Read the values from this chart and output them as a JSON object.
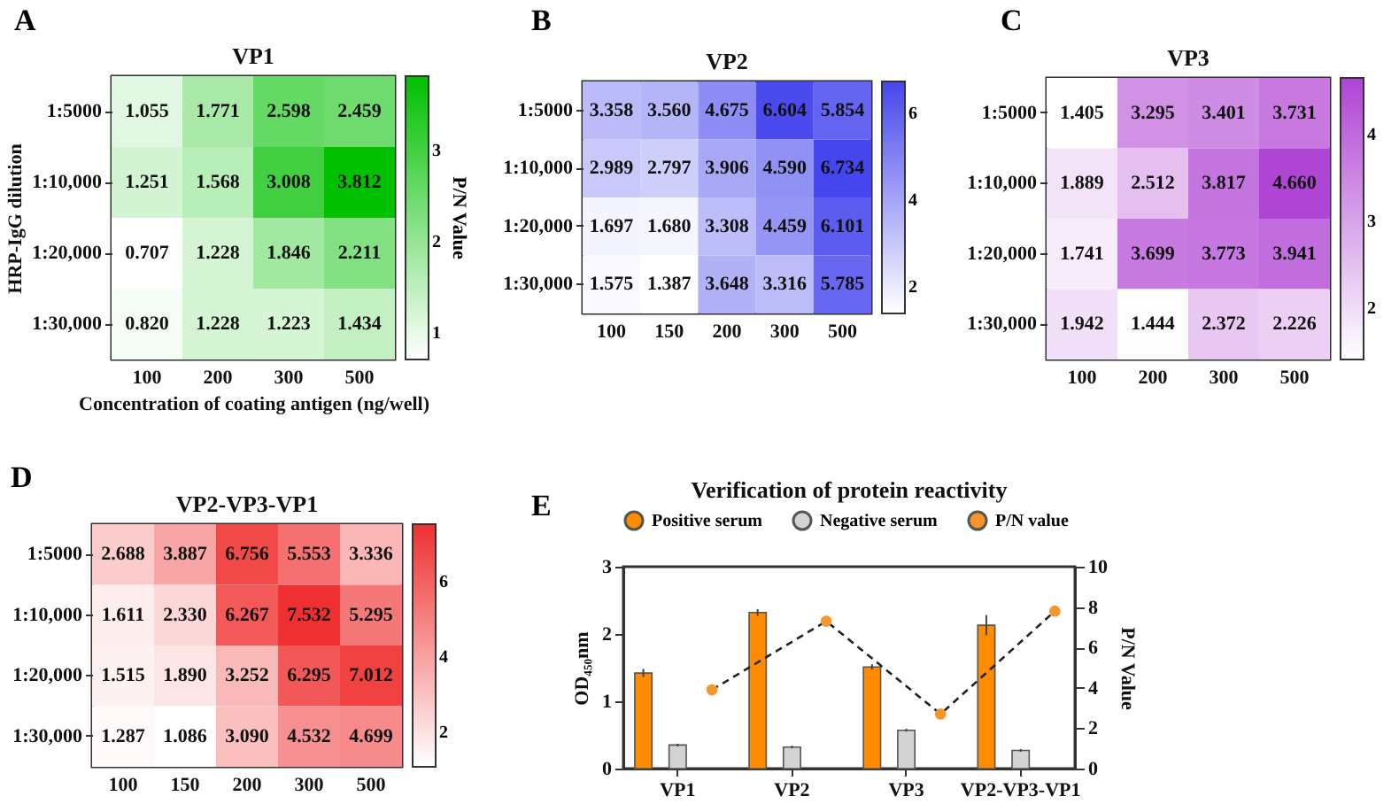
{
  "chart_data": [
    {
      "type": "heatmap",
      "title": "VP1",
      "annotations": [
        "A"
      ],
      "xlabel": "Concentration of coating antigen (ng/well)",
      "ylabel": "HRP-IgG dilution",
      "clabel": "P/N Value",
      "color": "#00c000",
      "grid": false,
      "categories": [
        "100",
        "200",
        "300",
        "500"
      ],
      "y_categories": [
        "1:5000",
        "1:10,000",
        "1:20,000",
        "1:30,000"
      ],
      "cells": [
        [
          1.055,
          1.771,
          2.598,
          2.459
        ],
        [
          1.251,
          1.568,
          3.008,
          3.812
        ],
        [
          0.707,
          1.228,
          1.846,
          2.211
        ],
        [
          0.82,
          1.228,
          1.223,
          1.434
        ]
      ],
      "cell_labels": [
        [
          "1.055",
          "1.771",
          "2.598",
          "2.459"
        ],
        [
          "1.251",
          "1.568",
          "3.008",
          "3.812"
        ],
        [
          "0.707",
          "1.228",
          "1.846",
          "2.211"
        ],
        [
          "0.820",
          "1.228",
          "1.223",
          "1.434"
        ]
      ],
      "clim": [
        0.707,
        3.812
      ],
      "cticks": [
        1,
        2,
        3
      ]
    },
    {
      "type": "heatmap",
      "title": "VP2",
      "annotations": [
        "B"
      ],
      "color": "#4646ee",
      "grid": false,
      "categories": [
        "100",
        "150",
        "200",
        "300",
        "500"
      ],
      "y_categories": [
        "1:5000",
        "1:10,000",
        "1:20,000",
        "1:30,000"
      ],
      "cells": [
        [
          3.358,
          3.56,
          4.675,
          6.604,
          5.854
        ],
        [
          2.989,
          2.797,
          3.906,
          4.59,
          6.734
        ],
        [
          1.697,
          1.68,
          3.308,
          4.459,
          6.101
        ],
        [
          1.575,
          1.387,
          3.648,
          3.316,
          5.785
        ]
      ],
      "cell_labels": [
        [
          "3.358",
          "3.560",
          "4.675",
          "6.604",
          "5.854"
        ],
        [
          "2.989",
          "2.797",
          "3.906",
          "4.590",
          "6.734"
        ],
        [
          "1.697",
          "1.680",
          "3.308",
          "4.459",
          "6.101"
        ],
        [
          "1.575",
          "1.387",
          "3.648",
          "3.316",
          "5.785"
        ]
      ],
      "clim": [
        1.387,
        6.734
      ],
      "cticks": [
        2,
        4,
        6
      ]
    },
    {
      "type": "heatmap",
      "title": "VP3",
      "annotations": [
        "C"
      ],
      "color": "#b044d4",
      "grid": false,
      "categories": [
        "100",
        "200",
        "300",
        "500"
      ],
      "y_categories": [
        "1:5000",
        "1:10,000",
        "1:20,000",
        "1:30,000"
      ],
      "cells": [
        [
          1.405,
          3.295,
          3.401,
          3.731
        ],
        [
          1.889,
          2.512,
          3.817,
          4.66
        ],
        [
          1.741,
          3.699,
          3.773,
          3.941
        ],
        [
          1.942,
          1.444,
          2.372,
          2.226
        ]
      ],
      "cell_labels": [
        [
          "1.405",
          "3.295",
          "3.401",
          "3.731"
        ],
        [
          "1.889",
          "2.512",
          "3.817",
          "4.660"
        ],
        [
          "1.741",
          "3.699",
          "3.773",
          "3.941"
        ],
        [
          "1.942",
          "1.444",
          "2.372",
          "2.226"
        ]
      ],
      "clim": [
        1.405,
        4.66
      ],
      "cticks": [
        2,
        3,
        4
      ]
    },
    {
      "type": "heatmap",
      "title": "VP2-VP3-VP1",
      "annotations": [
        "D"
      ],
      "color": "#f03030",
      "grid": false,
      "categories": [
        "100",
        "150",
        "200",
        "300",
        "500"
      ],
      "y_categories": [
        "1:5000",
        "1:10,000",
        "1:20,000",
        "1:30,000"
      ],
      "cells": [
        [
          2.688,
          3.887,
          6.756,
          5.553,
          3.336
        ],
        [
          1.611,
          2.33,
          6.267,
          7.532,
          5.295
        ],
        [
          1.515,
          1.89,
          3.252,
          6.295,
          7.012
        ],
        [
          1.287,
          1.086,
          3.09,
          4.532,
          4.699
        ]
      ],
      "cell_labels": [
        [
          "2.688",
          "3.887",
          "6.756",
          "5.553",
          "3.336"
        ],
        [
          "1.611",
          "2.330",
          "6.267",
          "7.532",
          "5.295"
        ],
        [
          "1.515",
          "1.890",
          "3.252",
          "6.295",
          "7.012"
        ],
        [
          "1.287",
          "1.086",
          "3.090",
          "4.532",
          "4.699"
        ]
      ],
      "clim": [
        1.086,
        7.532
      ],
      "cticks": [
        2,
        4,
        6
      ]
    },
    {
      "type": "bar",
      "title": "Verification of protein reactivity",
      "annotations": [
        "E"
      ],
      "ylabel": "OD₄₅₀nm",
      "y2label": "P/N Value",
      "grid": false,
      "legend": "top",
      "categories": [
        "VP1",
        "VP2",
        "VP3",
        "VP2-VP3-VP1"
      ],
      "series": [
        {
          "name": "Positive serum",
          "color": "#ff8c00",
          "values": [
            1.42,
            2.32,
            1.51,
            2.13
          ],
          "errors": [
            0.06,
            0.05,
            0.04,
            0.15
          ]
        },
        {
          "name": "Negative serum",
          "color": "#d3d3d3",
          "values": [
            0.35,
            0.32,
            0.57,
            0.27
          ],
          "errors": [
            0.02,
            0.02,
            0.02,
            0.02
          ]
        },
        {
          "name": "P/N value",
          "type": "line",
          "axis": "y2",
          "color": "#f5962d",
          "marker": "circle",
          "line_style": "dashed",
          "values": [
            3.9,
            7.3,
            2.7,
            7.8
          ]
        }
      ],
      "ylim": [
        0,
        3
      ],
      "yticks": [
        0,
        1,
        2,
        3
      ],
      "y2lim": [
        0,
        10
      ],
      "y2ticks": [
        0,
        2,
        4,
        6,
        8,
        10
      ]
    }
  ]
}
